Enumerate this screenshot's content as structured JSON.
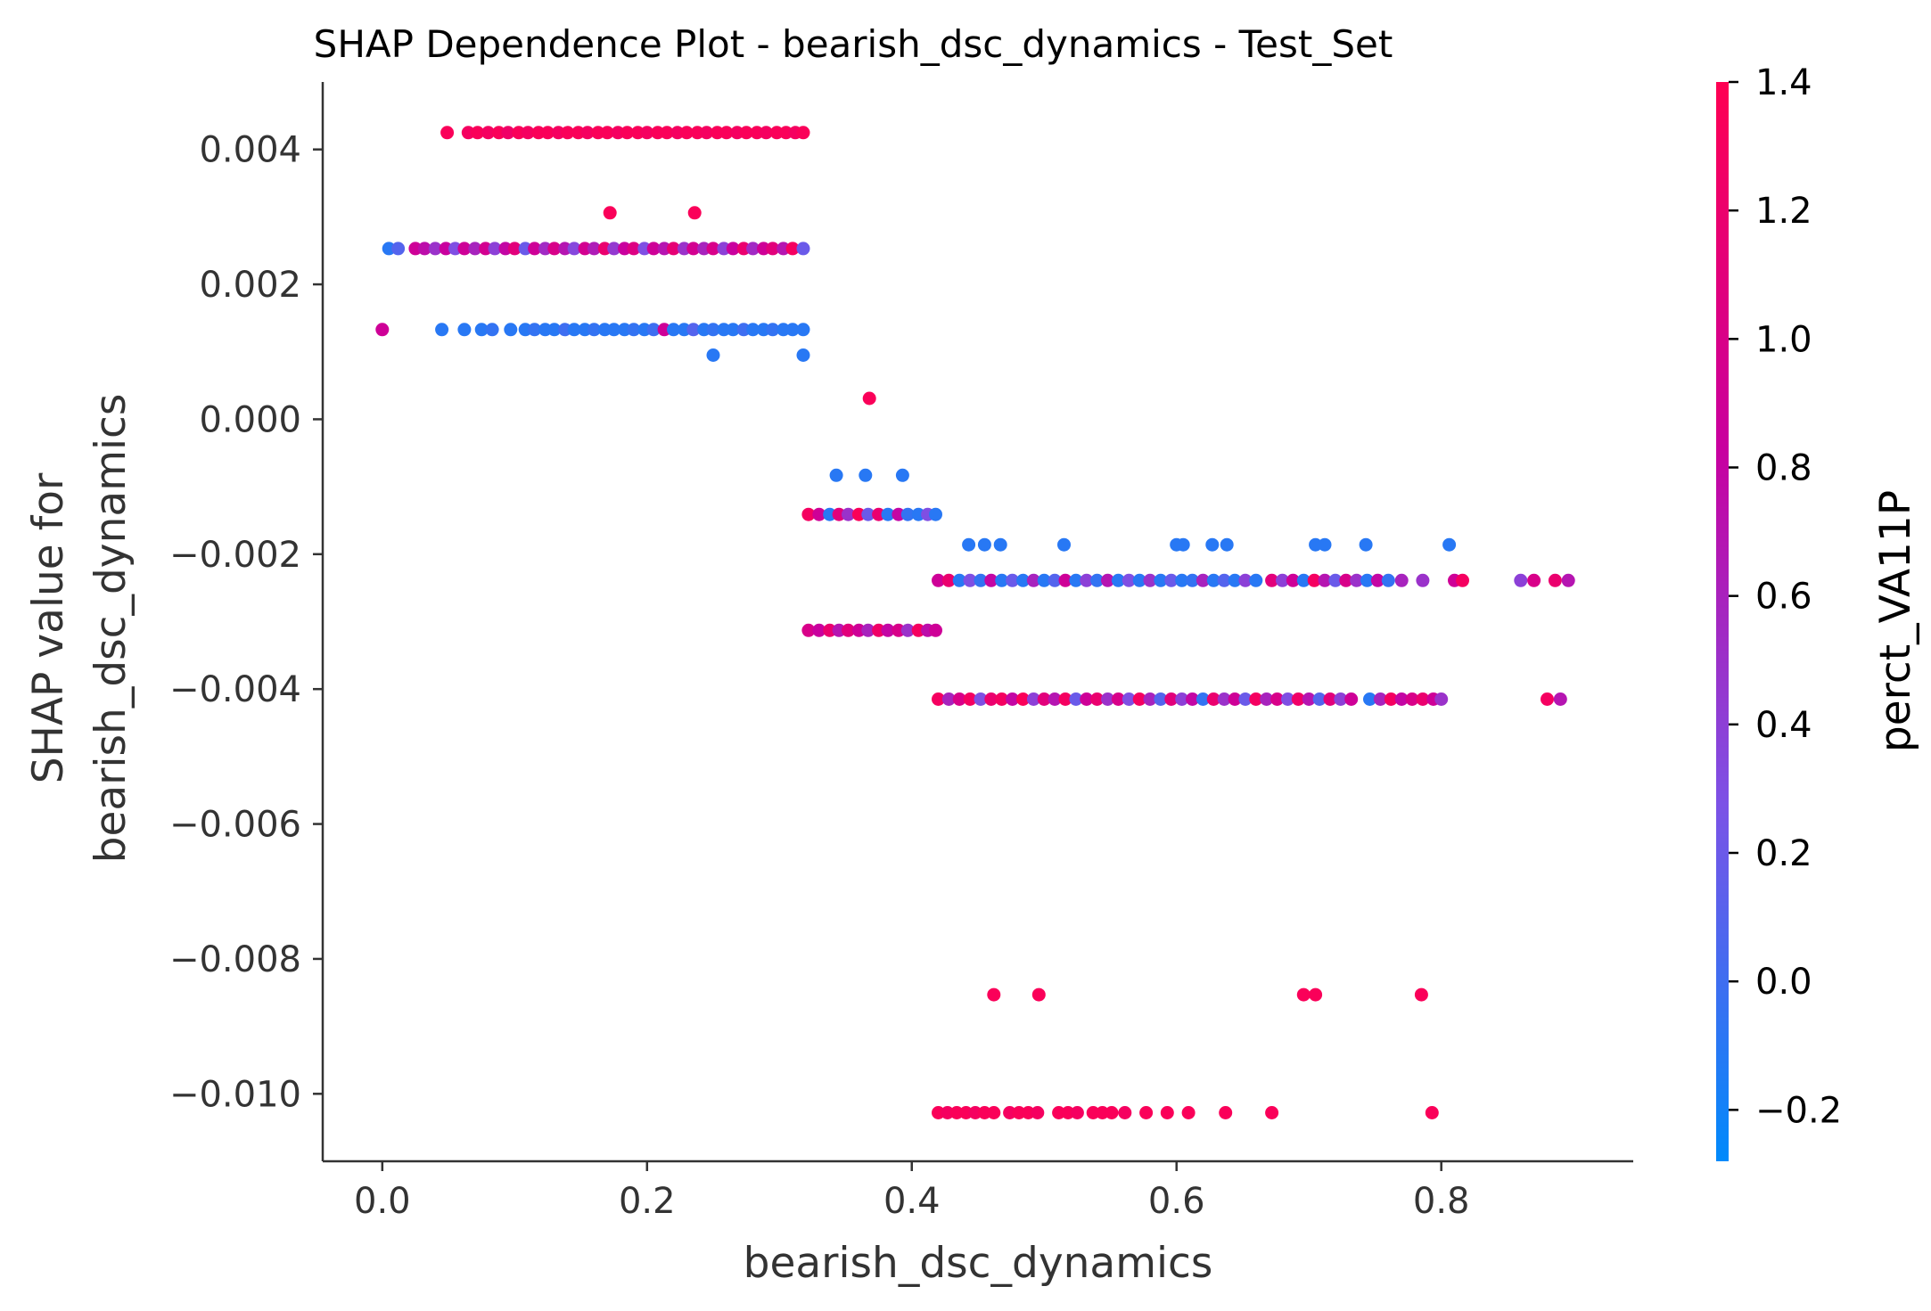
{
  "chart_data": {
    "type": "scatter",
    "title": "SHAP Dependence Plot - bearish_dsc_dynamics - Test_Set",
    "xlabel": "bearish_dsc_dynamics",
    "ylabel_lines": [
      "SHAP value for",
      "bearish_dsc_dynamics"
    ],
    "xlim": [
      -0.045,
      0.945
    ],
    "ylim": [
      -0.011,
      0.005
    ],
    "xticks": [
      0.0,
      0.2,
      0.4,
      0.6,
      0.8
    ],
    "xtick_labels": [
      "0.0",
      "0.2",
      "0.4",
      "0.6",
      "0.8"
    ],
    "yticks": [
      0.004,
      0.002,
      0.0,
      -0.002,
      -0.004,
      -0.006,
      -0.008,
      -0.01
    ],
    "ytick_labels": [
      "0.004",
      "0.002",
      "0.000",
      "−0.002",
      "−0.004",
      "−0.006",
      "−0.008",
      "−0.010"
    ],
    "grid": false,
    "colorbar": {
      "label": "perct_VA11P",
      "range": [
        -0.28,
        1.4
      ],
      "ticks": [
        1.4,
        1.2,
        1.0,
        0.8,
        0.6,
        0.4,
        0.2,
        0.0,
        -0.2
      ],
      "tick_labels": [
        "1.4",
        "1.2",
        "1.0",
        "0.8",
        "0.6",
        "0.4",
        "0.2",
        "0.0",
        "−0.2"
      ],
      "colors": [
        "#008afb",
        "#7c52e6",
        "#c8009f",
        "#ff0052"
      ]
    },
    "points": [
      [
        0.049,
        0.00425,
        1.35
      ],
      [
        0.065,
        0.00425,
        1.3
      ],
      [
        0.072,
        0.00425,
        1.35
      ],
      [
        0.08,
        0.00425,
        1.3
      ],
      [
        0.088,
        0.00425,
        1.35
      ],
      [
        0.095,
        0.00425,
        1.25
      ],
      [
        0.103,
        0.00425,
        1.35
      ],
      [
        0.11,
        0.00425,
        1.3
      ],
      [
        0.118,
        0.00425,
        1.35
      ],
      [
        0.125,
        0.00425,
        1.35
      ],
      [
        0.133,
        0.00425,
        1.3
      ],
      [
        0.14,
        0.00425,
        1.35
      ],
      [
        0.148,
        0.00425,
        1.35
      ],
      [
        0.155,
        0.00425,
        1.3
      ],
      [
        0.163,
        0.00425,
        1.35
      ],
      [
        0.17,
        0.00425,
        1.35
      ],
      [
        0.178,
        0.00425,
        1.3
      ],
      [
        0.185,
        0.00425,
        1.35
      ],
      [
        0.193,
        0.00425,
        1.35
      ],
      [
        0.2,
        0.00425,
        1.3
      ],
      [
        0.208,
        0.00425,
        1.35
      ],
      [
        0.215,
        0.00425,
        1.35
      ],
      [
        0.223,
        0.00425,
        1.3
      ],
      [
        0.23,
        0.00425,
        1.35
      ],
      [
        0.238,
        0.00425,
        1.35
      ],
      [
        0.245,
        0.00425,
        1.3
      ],
      [
        0.253,
        0.00425,
        1.35
      ],
      [
        0.26,
        0.00425,
        1.35
      ],
      [
        0.268,
        0.00425,
        1.3
      ],
      [
        0.275,
        0.00425,
        1.35
      ],
      [
        0.283,
        0.00425,
        1.35
      ],
      [
        0.29,
        0.00425,
        1.3
      ],
      [
        0.298,
        0.00425,
        1.35
      ],
      [
        0.305,
        0.00425,
        1.35
      ],
      [
        0.312,
        0.00425,
        1.3
      ],
      [
        0.318,
        0.00425,
        1.35
      ],
      [
        0.172,
        0.00306,
        1.35
      ],
      [
        0.236,
        0.00306,
        1.35
      ],
      [
        0.005,
        0.00253,
        -0.1
      ],
      [
        0.012,
        0.00253,
        0.1
      ],
      [
        0.025,
        0.00253,
        0.9
      ],
      [
        0.032,
        0.00253,
        0.75
      ],
      [
        0.04,
        0.00253,
        0.5
      ],
      [
        0.048,
        0.00253,
        0.85
      ],
      [
        0.055,
        0.00253,
        0.3
      ],
      [
        0.062,
        0.00253,
        0.9
      ],
      [
        0.07,
        0.00253,
        0.6
      ],
      [
        0.078,
        0.00253,
        0.95
      ],
      [
        0.085,
        0.00253,
        0.4
      ],
      [
        0.093,
        0.00253,
        0.8
      ],
      [
        0.1,
        0.00253,
        1.1
      ],
      [
        0.108,
        0.00253,
        0.2
      ],
      [
        0.115,
        0.00253,
        0.9
      ],
      [
        0.123,
        0.00253,
        0.55
      ],
      [
        0.13,
        0.00253,
        1.0
      ],
      [
        0.138,
        0.00253,
        0.7
      ],
      [
        0.145,
        0.00253,
        0.35
      ],
      [
        0.153,
        0.00253,
        0.95
      ],
      [
        0.16,
        0.00253,
        0.65
      ],
      [
        0.168,
        0.00253,
        1.2
      ],
      [
        0.175,
        0.00253,
        0.45
      ],
      [
        0.183,
        0.00253,
        0.85
      ],
      [
        0.19,
        0.00253,
        1.05
      ],
      [
        0.198,
        0.00253,
        0.3
      ],
      [
        0.205,
        0.00253,
        0.9
      ],
      [
        0.213,
        0.00253,
        0.7
      ],
      [
        0.22,
        0.00253,
        1.15
      ],
      [
        0.228,
        0.00253,
        0.5
      ],
      [
        0.235,
        0.00253,
        0.95
      ],
      [
        0.243,
        0.00253,
        0.6
      ],
      [
        0.25,
        0.00253,
        1.0
      ],
      [
        0.258,
        0.00253,
        0.4
      ],
      [
        0.265,
        0.00253,
        0.85
      ],
      [
        0.273,
        0.00253,
        1.2
      ],
      [
        0.28,
        0.00253,
        0.55
      ],
      [
        0.288,
        0.00253,
        0.9
      ],
      [
        0.295,
        0.00253,
        1.1
      ],
      [
        0.303,
        0.00253,
        0.7
      ],
      [
        0.31,
        0.00253,
        1.3
      ],
      [
        0.318,
        0.00253,
        0.2
      ],
      [
        0.0,
        0.00133,
        0.9
      ],
      [
        0.045,
        0.00133,
        -0.1
      ],
      [
        0.062,
        0.00133,
        -0.1
      ],
      [
        0.075,
        0.00133,
        -0.1
      ],
      [
        0.083,
        0.00133,
        -0.05
      ],
      [
        0.097,
        0.00133,
        -0.1
      ],
      [
        0.108,
        0.00133,
        -0.1
      ],
      [
        0.115,
        0.00133,
        -0.05
      ],
      [
        0.123,
        0.00133,
        -0.1
      ],
      [
        0.13,
        0.00133,
        -0.1
      ],
      [
        0.138,
        0.00133,
        0.0
      ],
      [
        0.145,
        0.00133,
        -0.1
      ],
      [
        0.153,
        0.00133,
        -0.1
      ],
      [
        0.16,
        0.00133,
        -0.05
      ],
      [
        0.168,
        0.00133,
        -0.1
      ],
      [
        0.175,
        0.00133,
        -0.1
      ],
      [
        0.183,
        0.00133,
        -0.1
      ],
      [
        0.19,
        0.00133,
        -0.05
      ],
      [
        0.198,
        0.00133,
        -0.1
      ],
      [
        0.205,
        0.00133,
        0.0
      ],
      [
        0.213,
        0.00133,
        0.9
      ],
      [
        0.22,
        0.00133,
        -0.1
      ],
      [
        0.228,
        0.00133,
        -0.1
      ],
      [
        0.235,
        0.00133,
        0.1
      ],
      [
        0.243,
        0.00133,
        -0.1
      ],
      [
        0.25,
        0.00133,
        -0.05
      ],
      [
        0.258,
        0.00133,
        -0.1
      ],
      [
        0.265,
        0.00133,
        -0.1
      ],
      [
        0.273,
        0.00133,
        0.0
      ],
      [
        0.28,
        0.00133,
        -0.1
      ],
      [
        0.288,
        0.00133,
        -0.1
      ],
      [
        0.295,
        0.00133,
        -0.05
      ],
      [
        0.303,
        0.00133,
        -0.1
      ],
      [
        0.31,
        0.00133,
        -0.1
      ],
      [
        0.318,
        0.00133,
        -0.1
      ],
      [
        0.25,
        0.00095,
        -0.1
      ],
      [
        0.318,
        0.00095,
        -0.1
      ],
      [
        0.368,
        0.00031,
        1.35
      ],
      [
        0.343,
        -0.00083,
        -0.1
      ],
      [
        0.365,
        -0.00083,
        -0.1
      ],
      [
        0.393,
        -0.00083,
        -0.1
      ],
      [
        0.322,
        -0.00141,
        1.3
      ],
      [
        0.33,
        -0.00141,
        0.9
      ],
      [
        0.338,
        -0.00141,
        -0.1
      ],
      [
        0.345,
        -0.00141,
        1.1
      ],
      [
        0.352,
        -0.00141,
        0.5
      ],
      [
        0.36,
        -0.00141,
        1.35
      ],
      [
        0.367,
        -0.00141,
        0.2
      ],
      [
        0.375,
        -0.00141,
        1.2
      ],
      [
        0.382,
        -0.00141,
        -0.1
      ],
      [
        0.39,
        -0.00141,
        0.8
      ],
      [
        0.397,
        -0.00141,
        -0.05
      ],
      [
        0.405,
        -0.00141,
        -0.1
      ],
      [
        0.412,
        -0.00141,
        0.3
      ],
      [
        0.418,
        -0.00141,
        -0.1
      ],
      [
        0.322,
        -0.00313,
        1.0
      ],
      [
        0.33,
        -0.00313,
        0.85
      ],
      [
        0.338,
        -0.00313,
        1.2
      ],
      [
        0.345,
        -0.00313,
        0.7
      ],
      [
        0.352,
        -0.00313,
        1.1
      ],
      [
        0.36,
        -0.00313,
        0.9
      ],
      [
        0.367,
        -0.00313,
        0.6
      ],
      [
        0.375,
        -0.00313,
        1.25
      ],
      [
        0.382,
        -0.00313,
        0.8
      ],
      [
        0.39,
        -0.00313,
        1.0
      ],
      [
        0.397,
        -0.00313,
        0.5
      ],
      [
        0.405,
        -0.00313,
        1.3
      ],
      [
        0.412,
        -0.00313,
        0.75
      ],
      [
        0.418,
        -0.00313,
        0.9
      ],
      [
        0.443,
        -0.00186,
        -0.1
      ],
      [
        0.455,
        -0.00186,
        -0.1
      ],
      [
        0.467,
        -0.00186,
        -0.1
      ],
      [
        0.515,
        -0.00186,
        -0.1
      ],
      [
        0.6,
        -0.00186,
        -0.1
      ],
      [
        0.605,
        -0.00186,
        -0.1
      ],
      [
        0.627,
        -0.00186,
        -0.1
      ],
      [
        0.638,
        -0.00186,
        -0.1
      ],
      [
        0.705,
        -0.00186,
        -0.1
      ],
      [
        0.712,
        -0.00186,
        -0.1
      ],
      [
        0.743,
        -0.00186,
        -0.1
      ],
      [
        0.806,
        -0.00186,
        -0.1
      ],
      [
        0.42,
        -0.00239,
        0.9
      ],
      [
        0.428,
        -0.00239,
        1.2
      ],
      [
        0.436,
        -0.00239,
        -0.1
      ],
      [
        0.444,
        -0.00239,
        0.3
      ],
      [
        0.452,
        -0.00239,
        -0.05
      ],
      [
        0.46,
        -0.00239,
        0.8
      ],
      [
        0.468,
        -0.00239,
        -0.1
      ],
      [
        0.476,
        -0.00239,
        0.2
      ],
      [
        0.484,
        -0.00239,
        -0.1
      ],
      [
        0.492,
        -0.00239,
        0.6
      ],
      [
        0.5,
        -0.00239,
        -0.1
      ],
      [
        0.508,
        -0.00239,
        0.1
      ],
      [
        0.516,
        -0.00239,
        0.9
      ],
      [
        0.524,
        -0.00239,
        -0.1
      ],
      [
        0.532,
        -0.00239,
        0.4
      ],
      [
        0.54,
        -0.00239,
        -0.05
      ],
      [
        0.548,
        -0.00239,
        0.7
      ],
      [
        0.556,
        -0.00239,
        -0.1
      ],
      [
        0.564,
        -0.00239,
        0.3
      ],
      [
        0.572,
        -0.00239,
        -0.1
      ],
      [
        0.58,
        -0.00239,
        0.5
      ],
      [
        0.588,
        -0.00239,
        -0.1
      ],
      [
        0.596,
        -0.00239,
        0.2
      ],
      [
        0.604,
        -0.00239,
        -0.1
      ],
      [
        0.612,
        -0.00239,
        -0.05
      ],
      [
        0.62,
        -0.00239,
        0.6
      ],
      [
        0.628,
        -0.00239,
        -0.1
      ],
      [
        0.636,
        -0.00239,
        0.1
      ],
      [
        0.644,
        -0.00239,
        -0.1
      ],
      [
        0.652,
        -0.00239,
        0.4
      ],
      [
        0.66,
        -0.00239,
        -0.1
      ],
      [
        0.672,
        -0.00239,
        1.1
      ],
      [
        0.68,
        -0.00239,
        0.4
      ],
      [
        0.688,
        -0.00239,
        0.9
      ],
      [
        0.696,
        -0.00239,
        -0.1
      ],
      [
        0.704,
        -0.00239,
        1.3
      ],
      [
        0.712,
        -0.00239,
        0.7
      ],
      [
        0.72,
        -0.00239,
        0.2
      ],
      [
        0.728,
        -0.00239,
        1.0
      ],
      [
        0.736,
        -0.00239,
        0.5
      ],
      [
        0.744,
        -0.00239,
        -0.1
      ],
      [
        0.752,
        -0.00239,
        0.8
      ],
      [
        0.76,
        -0.00239,
        -0.05
      ],
      [
        0.77,
        -0.00239,
        0.6
      ],
      [
        0.786,
        -0.00239,
        0.5
      ],
      [
        0.81,
        -0.00239,
        0.9
      ],
      [
        0.816,
        -0.00239,
        1.3
      ],
      [
        0.86,
        -0.00239,
        0.4
      ],
      [
        0.87,
        -0.00239,
        1.0
      ],
      [
        0.886,
        -0.00239,
        1.2
      ],
      [
        0.896,
        -0.00239,
        0.7
      ],
      [
        0.42,
        -0.00415,
        1.3
      ],
      [
        0.428,
        -0.00415,
        0.6
      ],
      [
        0.436,
        -0.00415,
        1.0
      ],
      [
        0.444,
        -0.00415,
        1.3
      ],
      [
        0.452,
        -0.00415,
        0.3
      ],
      [
        0.46,
        -0.00415,
        1.2
      ],
      [
        0.468,
        -0.00415,
        1.3
      ],
      [
        0.476,
        -0.00415,
        0.8
      ],
      [
        0.484,
        -0.00415,
        1.35
      ],
      [
        0.492,
        -0.00415,
        0.4
      ],
      [
        0.5,
        -0.00415,
        1.1
      ],
      [
        0.508,
        -0.00415,
        0.7
      ],
      [
        0.516,
        -0.00415,
        1.3
      ],
      [
        0.524,
        -0.00415,
        0.2
      ],
      [
        0.532,
        -0.00415,
        0.9
      ],
      [
        0.54,
        -0.00415,
        1.2
      ],
      [
        0.548,
        -0.00415,
        0.5
      ],
      [
        0.556,
        -0.00415,
        1.0
      ],
      [
        0.564,
        -0.00415,
        0.3
      ],
      [
        0.572,
        -0.00415,
        1.3
      ],
      [
        0.58,
        -0.00415,
        0.6
      ],
      [
        0.588,
        -0.00415,
        0.1
      ],
      [
        0.596,
        -0.00415,
        1.1
      ],
      [
        0.604,
        -0.00415,
        0.4
      ],
      [
        0.612,
        -0.00415,
        0.8
      ],
      [
        0.62,
        -0.00415,
        -0.05
      ],
      [
        0.628,
        -0.00415,
        1.2
      ],
      [
        0.636,
        -0.00415,
        0.5
      ],
      [
        0.644,
        -0.00415,
        0.9
      ],
      [
        0.652,
        -0.00415,
        0.2
      ],
      [
        0.66,
        -0.00415,
        1.3
      ],
      [
        0.668,
        -0.00415,
        0.6
      ],
      [
        0.676,
        -0.00415,
        1.0
      ],
      [
        0.684,
        -0.00415,
        0.3
      ],
      [
        0.692,
        -0.00415,
        1.25
      ],
      [
        0.7,
        -0.00415,
        0.7
      ],
      [
        0.708,
        -0.00415,
        0.1
      ],
      [
        0.716,
        -0.00415,
        1.1
      ],
      [
        0.724,
        -0.00415,
        0.4
      ],
      [
        0.732,
        -0.00415,
        0.9
      ],
      [
        0.746,
        -0.00415,
        -0.1
      ],
      [
        0.754,
        -0.00415,
        0.6
      ],
      [
        0.762,
        -0.00415,
        1.3
      ],
      [
        0.77,
        -0.00415,
        0.8
      ],
      [
        0.778,
        -0.00415,
        1.0
      ],
      [
        0.786,
        -0.00415,
        1.2
      ],
      [
        0.794,
        -0.00415,
        0.9
      ],
      [
        0.8,
        -0.00415,
        0.5
      ],
      [
        0.88,
        -0.00415,
        1.3
      ],
      [
        0.89,
        -0.00415,
        0.7
      ],
      [
        0.462,
        -0.00853,
        1.35
      ],
      [
        0.496,
        -0.00853,
        1.35
      ],
      [
        0.696,
        -0.00853,
        1.35
      ],
      [
        0.705,
        -0.00853,
        1.35
      ],
      [
        0.785,
        -0.00853,
        1.35
      ],
      [
        0.42,
        -0.01028,
        1.35
      ],
      [
        0.427,
        -0.01028,
        1.3
      ],
      [
        0.434,
        -0.01028,
        1.35
      ],
      [
        0.441,
        -0.01028,
        1.35
      ],
      [
        0.448,
        -0.01028,
        1.3
      ],
      [
        0.455,
        -0.01028,
        1.35
      ],
      [
        0.462,
        -0.01028,
        1.35
      ],
      [
        0.474,
        -0.01028,
        1.3
      ],
      [
        0.481,
        -0.01028,
        1.35
      ],
      [
        0.488,
        -0.01028,
        1.35
      ],
      [
        0.495,
        -0.01028,
        1.3
      ],
      [
        0.511,
        -0.01028,
        1.35
      ],
      [
        0.518,
        -0.01028,
        1.35
      ],
      [
        0.525,
        -0.01028,
        1.3
      ],
      [
        0.537,
        -0.01028,
        1.35
      ],
      [
        0.544,
        -0.01028,
        1.35
      ],
      [
        0.551,
        -0.01028,
        1.35
      ],
      [
        0.561,
        -0.01028,
        1.3
      ],
      [
        0.577,
        -0.01028,
        1.35
      ],
      [
        0.593,
        -0.01028,
        1.35
      ],
      [
        0.609,
        -0.01028,
        1.35
      ],
      [
        0.637,
        -0.01028,
        1.35
      ],
      [
        0.672,
        -0.01028,
        1.35
      ],
      [
        0.793,
        -0.01028,
        1.35
      ]
    ]
  }
}
